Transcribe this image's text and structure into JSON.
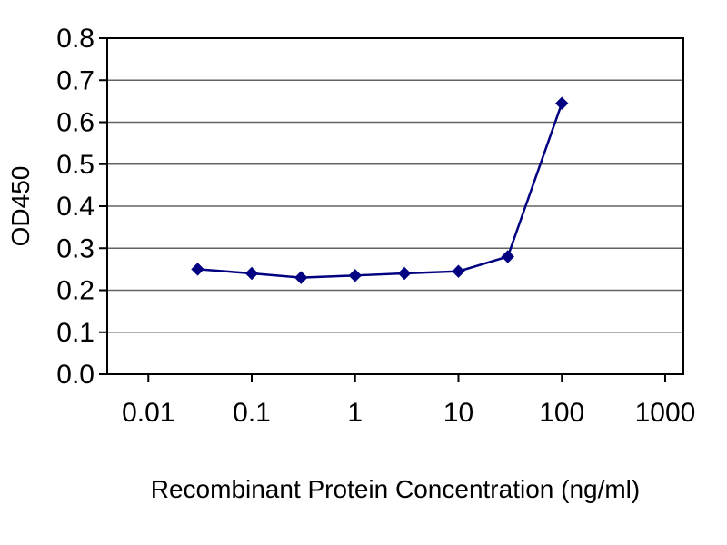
{
  "chart_data": {
    "type": "line",
    "title": "",
    "xlabel": "Recombinant Protein Concentration (ng/ml)",
    "ylabel": "OD450",
    "x_scale": "log",
    "x": [
      0.03,
      0.1,
      0.3,
      1,
      3,
      10,
      30,
      100
    ],
    "series": [
      {
        "name": "OD450",
        "values": [
          0.25,
          0.24,
          0.23,
          0.235,
          0.24,
          0.245,
          0.28,
          0.645
        ],
        "marker": "diamond"
      }
    ],
    "x_ticks": [
      "0.01",
      "0.1",
      "1",
      "10",
      "100",
      "1000"
    ],
    "y_ticks": [
      "0.0",
      "0.1",
      "0.2",
      "0.3",
      "0.4",
      "0.5",
      "0.6",
      "0.7",
      "0.8"
    ],
    "xlim": [
      0.01,
      1000
    ],
    "ylim": [
      0,
      0.8
    ],
    "grid": "horizontal",
    "legend": "none",
    "colors": {
      "line": "#000080",
      "marker": "#000080",
      "axis": "#000000",
      "gridline": "#636363",
      "text": "#000000",
      "background": "#ffffff"
    }
  }
}
